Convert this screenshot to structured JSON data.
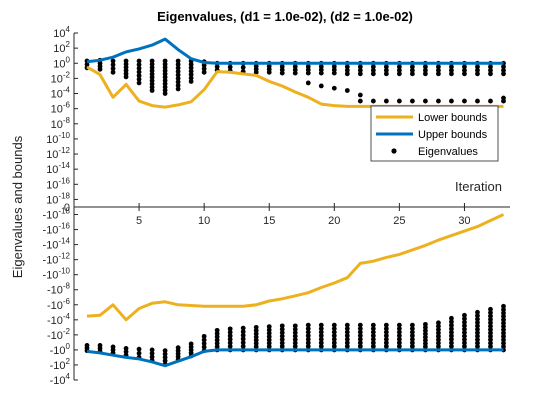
{
  "chart_data": {
    "type": "line",
    "title": "Eigenvalues, (d1 = 1.0e-02), (d2 = 1.0e-02)",
    "xlabel": "Iteration",
    "ylabel": "Eigenvalues and bounds",
    "y_scale": "symmetric-log (signed log10 magnitude, zero at center)",
    "xlim": [
      0,
      33.5
    ],
    "ylim_exponent": [
      -18,
      4
    ],
    "x_ticks": [
      "5",
      "10",
      "15",
      "20",
      "25",
      "30"
    ],
    "y_ticks_upper": [
      "10^4",
      "10^2",
      "10^0",
      "10^-2",
      "10^-4",
      "10^-6",
      "10^-8",
      "10^-10",
      "10^-12",
      "10^-14",
      "10^-16",
      "10^-18",
      "0"
    ],
    "y_ticks_lower": [
      "-10^-18",
      "-10^-16",
      "-10^-14",
      "-10^-12",
      "-10^-10",
      "-10^-8",
      "-10^-6",
      "-10^-4",
      "-10^-2",
      "-10^0",
      "-10^2",
      "-10^4"
    ],
    "legend_position": "right, upper half",
    "series": [
      {
        "name": "Lower bounds",
        "color": "#EDB120",
        "style": "line",
        "x": [
          1,
          2,
          3,
          4,
          5,
          6,
          7,
          8,
          9,
          10,
          11,
          12,
          13,
          14,
          15,
          16,
          17,
          18,
          19,
          20,
          21,
          22,
          23,
          24,
          25,
          26,
          27,
          28,
          29,
          30,
          31,
          32,
          33
        ],
        "y_upper_log10": [
          -0.5,
          -1.5,
          -4.5,
          -2.8,
          -5.0,
          -5.6,
          -5.8,
          -5.5,
          -5.1,
          -3.5,
          -1.1,
          -1.2,
          -1.4,
          -1.6,
          -2.4,
          -3.0,
          -3.8,
          -4.5,
          -5.4,
          -5.6,
          -5.7,
          -5.7,
          -5.7,
          -5.7,
          -5.7,
          -5.7,
          -5.7,
          -5.7,
          -5.7,
          -5.7,
          -5.7,
          -5.7,
          -5.7
        ],
        "y_lower_signed_log10": [
          -4.5,
          -4.6,
          -6.0,
          -4.0,
          -5.5,
          -6.2,
          -6.4,
          -6.0,
          -5.9,
          -5.8,
          -5.8,
          -5.8,
          -5.8,
          -6.0,
          -6.5,
          -6.8,
          -7.2,
          -7.6,
          -8.3,
          -8.9,
          -9.6,
          -11.5,
          -11.8,
          -12.3,
          -12.7,
          -13.3,
          -13.9,
          -14.6,
          -15.2,
          -15.8,
          -16.4,
          -17.2,
          -18.0
        ]
      },
      {
        "name": "Upper bounds",
        "color": "#0072BD",
        "style": "line",
        "x": [
          1,
          2,
          3,
          4,
          5,
          6,
          7,
          8,
          9,
          10,
          11,
          12,
          13,
          14,
          15,
          16,
          17,
          18,
          19,
          20,
          21,
          22,
          23,
          24,
          25,
          26,
          27,
          28,
          29,
          30,
          31,
          32,
          33
        ],
        "y_upper_log10": [
          0.2,
          0.4,
          0.8,
          1.5,
          1.9,
          2.4,
          3.2,
          1.8,
          0.6,
          0.1,
          0,
          0,
          0,
          0,
          0,
          0,
          0,
          0,
          0,
          0,
          0,
          0,
          0,
          0,
          0,
          0,
          0,
          0,
          0,
          0,
          0,
          0,
          0
        ],
        "y_lower_signed_log10": [
          0.2,
          0.4,
          0.7,
          1.0,
          1.2,
          1.6,
          2.1,
          1.5,
          0.9,
          0.2,
          0,
          0,
          0,
          0,
          0,
          0,
          0,
          0,
          0,
          0,
          0,
          0,
          0,
          0,
          0,
          0,
          0,
          0,
          0,
          0,
          0,
          0,
          0
        ]
      },
      {
        "name": "Eigenvalues",
        "color": "#000000",
        "style": "markers",
        "columns_upper": [
          {
            "x": 1,
            "from": 0.3,
            "to": -0.6
          },
          {
            "x": 2,
            "from": 0.4,
            "to": -0.8
          },
          {
            "x": 3,
            "from": 0.3,
            "to": -1.2
          },
          {
            "x": 4,
            "from": 0.3,
            "to": -1.8
          },
          {
            "x": 5,
            "from": 0.3,
            "to": -2.6
          },
          {
            "x": 6,
            "from": 0.3,
            "to": -3.6
          },
          {
            "x": 7,
            "from": 0.3,
            "to": -4.0
          },
          {
            "x": 8,
            "from": 0.3,
            "to": -3.4
          },
          {
            "x": 9,
            "from": 0.3,
            "to": -2.4
          },
          {
            "x": 10,
            "from": 0.2,
            "to": -1.2
          },
          {
            "x": 11,
            "from": 0.0,
            "to": -0.9
          },
          {
            "x": 12,
            "from": 0.0,
            "to": -1.0
          },
          {
            "x": 13,
            "from": 0.0,
            "to": -1.1
          },
          {
            "x": 14,
            "from": 0.0,
            "to": -1.2
          },
          {
            "x": 15,
            "from": 0.0,
            "to": -1.2
          },
          {
            "x": 16,
            "from": 0.0,
            "to": -1.3
          },
          {
            "x": 17,
            "from": 0.0,
            "to": -1.3
          },
          {
            "x": 18,
            "from": 0.0,
            "to": -1.3
          },
          {
            "x": 19,
            "from": 0.0,
            "to": -1.3
          },
          {
            "x": 20,
            "from": 0.0,
            "to": -1.3
          },
          {
            "x": 21,
            "from": 0.0,
            "to": -1.4
          },
          {
            "x": 22,
            "from": 0.0,
            "to": -1.4
          },
          {
            "x": 23,
            "from": 0.0,
            "to": -1.4
          },
          {
            "x": 24,
            "from": 0.0,
            "to": -1.4
          },
          {
            "x": 25,
            "from": 0.0,
            "to": -1.4
          },
          {
            "x": 26,
            "from": 0.0,
            "to": -1.4
          },
          {
            "x": 27,
            "from": 0.0,
            "to": -1.4
          },
          {
            "x": 28,
            "from": 0.0,
            "to": -1.4
          },
          {
            "x": 29,
            "from": 0.0,
            "to": -1.4
          },
          {
            "x": 30,
            "from": 0.0,
            "to": -1.4
          },
          {
            "x": 31,
            "from": 0.0,
            "to": -1.4
          },
          {
            "x": 32,
            "from": 0.0,
            "to": -1.4
          },
          {
            "x": 33,
            "from": 0.0,
            "to": -1.4
          }
        ],
        "extra_upper": [
          {
            "x": 18,
            "y": -2.6
          },
          {
            "x": 19,
            "y": -3.0
          },
          {
            "x": 20,
            "y": -3.3
          },
          {
            "x": 21,
            "y": -3.6
          },
          {
            "x": 22,
            "y": -4.2
          },
          {
            "x": 22,
            "y": -5.0
          },
          {
            "x": 23,
            "y": -5.0
          },
          {
            "x": 24,
            "y": -5.0
          },
          {
            "x": 25,
            "y": -5.0
          },
          {
            "x": 26,
            "y": -5.0
          },
          {
            "x": 27,
            "y": -5.0
          },
          {
            "x": 28,
            "y": -5.0
          },
          {
            "x": 29,
            "y": -5.0
          },
          {
            "x": 30,
            "y": -5.0
          },
          {
            "x": 31,
            "y": -5.0
          },
          {
            "x": 32,
            "y": -5.0
          },
          {
            "x": 33,
            "y": -4.6
          },
          {
            "x": 33,
            "y": -5.0
          }
        ],
        "columns_lower": [
          {
            "x": 1,
            "from": 0.1,
            "to": -0.6
          },
          {
            "x": 2,
            "from": 0.2,
            "to": -0.6
          },
          {
            "x": 3,
            "from": 0.4,
            "to": -0.4
          },
          {
            "x": 4,
            "from": 0.7,
            "to": -0.2
          },
          {
            "x": 5,
            "from": 1.0,
            "to": -0.1
          },
          {
            "x": 6,
            "from": 1.4,
            "to": 0.0
          },
          {
            "x": 7,
            "from": 1.9,
            "to": 0.1
          },
          {
            "x": 8,
            "from": 1.3,
            "to": -0.3
          },
          {
            "x": 9,
            "from": 0.8,
            "to": -0.8
          },
          {
            "x": 10,
            "from": 0.1,
            "to": -1.8
          },
          {
            "x": 11,
            "from": 0.0,
            "to": -2.6
          },
          {
            "x": 12,
            "from": 0.0,
            "to": -2.8
          },
          {
            "x": 13,
            "from": 0.0,
            "to": -2.9
          },
          {
            "x": 14,
            "from": 0.0,
            "to": -3.0
          },
          {
            "x": 15,
            "from": 0.0,
            "to": -3.1
          },
          {
            "x": 16,
            "from": 0.0,
            "to": -3.2
          },
          {
            "x": 17,
            "from": 0.0,
            "to": -3.2
          },
          {
            "x": 18,
            "from": 0.0,
            "to": -3.3
          },
          {
            "x": 19,
            "from": 0.0,
            "to": -3.3
          },
          {
            "x": 20,
            "from": 0.0,
            "to": -3.3
          },
          {
            "x": 21,
            "from": 0.0,
            "to": -3.3
          },
          {
            "x": 22,
            "from": 0.0,
            "to": -3.3
          },
          {
            "x": 23,
            "from": 0.0,
            "to": -3.3
          },
          {
            "x": 24,
            "from": 0.0,
            "to": -3.3
          },
          {
            "x": 25,
            "from": 0.0,
            "to": -3.3
          },
          {
            "x": 26,
            "from": 0.0,
            "to": -3.3
          },
          {
            "x": 27,
            "from": 0.0,
            "to": -3.4
          },
          {
            "x": 28,
            "from": 0.0,
            "to": -3.6
          },
          {
            "x": 29,
            "from": 0.0,
            "to": -4.2
          },
          {
            "x": 30,
            "from": 0.0,
            "to": -4.6
          },
          {
            "x": 31,
            "from": 0.0,
            "to": -5.0
          },
          {
            "x": 32,
            "from": 0.0,
            "to": -5.4
          },
          {
            "x": 33,
            "from": 0.0,
            "to": -5.8
          }
        ]
      }
    ]
  }
}
